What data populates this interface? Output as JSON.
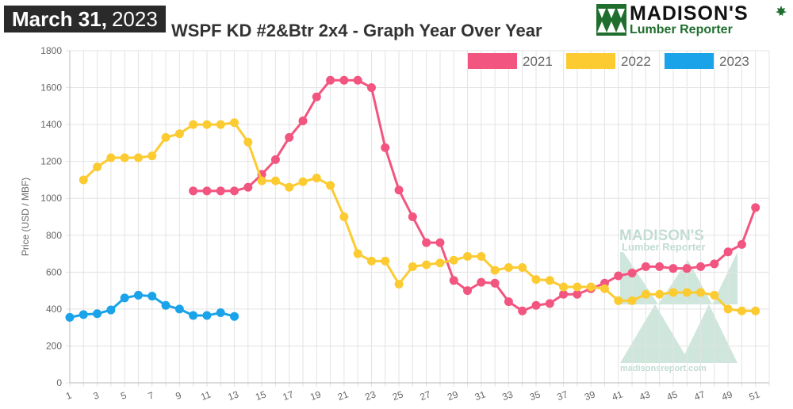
{
  "header": {
    "date_month_day": "March 31,",
    "date_year": "2023",
    "title": "WSPF KD #2&Btr 2x4 - Graph Year Over Year"
  },
  "logo": {
    "name": "MADISON'S",
    "sub": "Lumber Reporter",
    "mark_icon": "triangles-logo-icon",
    "leaf_icon": "maple-leaf-icon",
    "green": "#1f6e2e"
  },
  "watermark": {
    "name": "MADISON'S",
    "sub": "Lumber Reporter",
    "url": "madisonsreport.com"
  },
  "chart_data": {
    "type": "line",
    "ylabel": "Price (USD / MBF)",
    "xlabel": "",
    "ylim": [
      0,
      1800
    ],
    "yticks": [
      0,
      200,
      400,
      600,
      800,
      1000,
      1200,
      1400,
      1600,
      1800
    ],
    "xlim": [
      1,
      52
    ],
    "xticks": [
      1,
      3,
      5,
      7,
      9,
      11,
      13,
      15,
      17,
      19,
      21,
      23,
      25,
      27,
      29,
      31,
      33,
      35,
      37,
      39,
      41,
      43,
      45,
      47,
      49,
      51
    ],
    "grid": true,
    "legend_position": "top-right",
    "series": [
      {
        "name": "2021",
        "color": "#f2557f",
        "x": [
          10,
          11,
          12,
          13,
          14,
          15,
          16,
          17,
          18,
          19,
          20,
          21,
          22,
          23,
          24,
          25,
          26,
          27,
          28,
          29,
          30,
          31,
          32,
          33,
          34,
          35,
          36,
          37,
          38,
          39,
          40,
          41,
          42,
          43,
          44,
          45,
          46,
          47,
          48,
          49,
          50,
          51
        ],
        "values": [
          1040,
          1040,
          1040,
          1040,
          1060,
          1130,
          1210,
          1330,
          1420,
          1550,
          1640,
          1640,
          1640,
          1600,
          1275,
          1045,
          900,
          760,
          760,
          555,
          500,
          545,
          540,
          440,
          390,
          420,
          430,
          480,
          480,
          510,
          540,
          580,
          595,
          630,
          630,
          620,
          620,
          630,
          645,
          710,
          750,
          950
        ]
      },
      {
        "name": "2022",
        "color": "#fccb32",
        "x": [
          2,
          3,
          4,
          5,
          6,
          7,
          8,
          9,
          10,
          11,
          12,
          13,
          14,
          15,
          16,
          17,
          18,
          19,
          20,
          21,
          22,
          23,
          24,
          25,
          26,
          27,
          28,
          29,
          30,
          31,
          32,
          33,
          34,
          35,
          36,
          37,
          38,
          39,
          40,
          41,
          42,
          43,
          44,
          45,
          46,
          47,
          48,
          49,
          50,
          51
        ],
        "values": [
          1100,
          1170,
          1220,
          1220,
          1220,
          1230,
          1330,
          1350,
          1400,
          1400,
          1400,
          1410,
          1305,
          1095,
          1095,
          1060,
          1090,
          1110,
          1070,
          900,
          700,
          660,
          660,
          535,
          630,
          640,
          650,
          665,
          685,
          685,
          610,
          625,
          625,
          560,
          555,
          520,
          520,
          520,
          510,
          445,
          445,
          480,
          480,
          490,
          490,
          490,
          475,
          400,
          390,
          390
        ]
      },
      {
        "name": "2023",
        "color": "#1aa3e8",
        "x": [
          1,
          2,
          3,
          4,
          5,
          6,
          7,
          8,
          9,
          10,
          11,
          12,
          13
        ],
        "values": [
          355,
          370,
          375,
          395,
          460,
          475,
          470,
          420,
          400,
          365,
          365,
          380,
          360
        ]
      }
    ]
  }
}
